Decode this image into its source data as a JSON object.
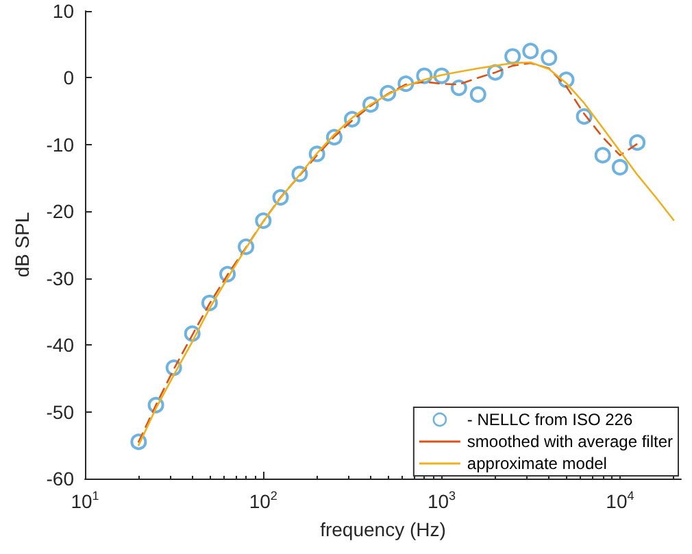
{
  "chart_data": {
    "type": "line",
    "xlabel": "frequency (Hz)",
    "ylabel": "dB SPL",
    "log": "x",
    "xlim": [
      10,
      22000
    ],
    "ylim": [
      -60,
      10
    ],
    "xticks": [
      {
        "value": 10,
        "label": "10$^{1}$"
      },
      {
        "value": 100,
        "label": "10$^{2}$"
      },
      {
        "value": 1000,
        "label": "10$^{3}$"
      },
      {
        "value": 10000,
        "label": "10$^{4}$"
      }
    ],
    "yticks": [
      -60,
      -50,
      -40,
      -30,
      -20,
      -10,
      0,
      10
    ],
    "grid": false,
    "legend": "bottom right",
    "series": [
      {
        "name": "- NELLC from ISO 226",
        "type": "scatter",
        "marker": "circle",
        "color": "#4a9fd8",
        "x": [
          20,
          25,
          31.5,
          40,
          50,
          63,
          80,
          100,
          125,
          160,
          200,
          250,
          315,
          400,
          500,
          630,
          800,
          1000,
          1250,
          1600,
          2000,
          2500,
          3150,
          4000,
          5000,
          6300,
          8000,
          10000,
          12500
        ],
        "values": [
          -54.5,
          -49,
          -43.4,
          -38.3,
          -33.7,
          -29.4,
          -25.3,
          -21.4,
          -17.9,
          -14.4,
          -11.4,
          -8.9,
          -6.2,
          -4.0,
          -2.3,
          -0.9,
          0.3,
          0.3,
          -1.5,
          -2.5,
          0.8,
          3.2,
          4.0,
          3.0,
          -0.3,
          -5.8,
          -11.6,
          -13.4,
          -9.7
        ]
      },
      {
        "name": "smoothed with average filter",
        "type": "line",
        "marker": "none",
        "line_style": "dashed",
        "color": "#d95319",
        "x": [
          20,
          25,
          31.5,
          40,
          50,
          63,
          80,
          100,
          125,
          160,
          200,
          250,
          315,
          400,
          500,
          630,
          800,
          1000,
          1250,
          1600,
          2000,
          2500,
          3150,
          4000,
          5000,
          6300,
          8000,
          10000,
          12500
        ],
        "values": [
          -54.5,
          -49.0,
          -43.6,
          -38.5,
          -33.8,
          -29.5,
          -25.4,
          -21.5,
          -17.9,
          -14.6,
          -11.6,
          -8.8,
          -6.4,
          -4.2,
          -2.4,
          -1.0,
          -0.6,
          -0.9,
          -1.0,
          0.0,
          0.8,
          1.8,
          2.2,
          1.4,
          -1.3,
          -5.4,
          -8.9,
          -11.6,
          -9.9
        ]
      },
      {
        "name": "approximate model",
        "type": "line",
        "marker": "none",
        "line_style": "solid",
        "color": "#edb120",
        "x": [
          20,
          25,
          31.5,
          40,
          50,
          63,
          80,
          100,
          125,
          160,
          200,
          250,
          315,
          400,
          500,
          630,
          800,
          1000,
          1250,
          1600,
          2000,
          2500,
          3150,
          4000,
          5000,
          6300,
          8000,
          10000,
          12500,
          16000,
          20000
        ],
        "values": [
          -55,
          -49.5,
          -44.5,
          -39.5,
          -34.5,
          -30,
          -25.5,
          -21.5,
          -18,
          -14.5,
          -11.3,
          -8.5,
          -6,
          -4,
          -2.5,
          -1.2,
          -0.3,
          0.4,
          0.9,
          1.4,
          1.8,
          2.2,
          2.3,
          1.3,
          -0.8,
          -3.8,
          -7.5,
          -11,
          -14.5,
          -18,
          -21.3
        ]
      }
    ]
  }
}
